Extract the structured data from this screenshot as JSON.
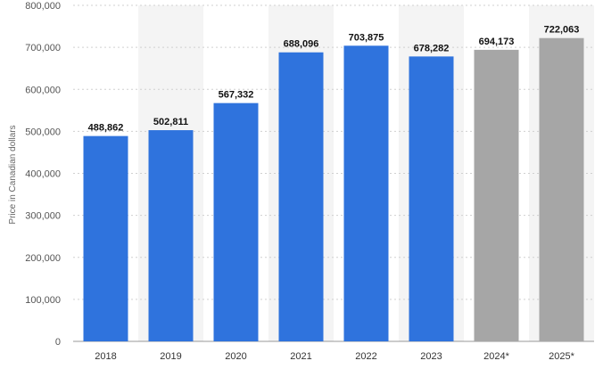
{
  "chart_data": {
    "type": "bar",
    "title": "",
    "xlabel": "",
    "ylabel": "Price in Canadian dollars",
    "ylim": [
      0,
      800000
    ],
    "yticks": [
      0,
      100000,
      200000,
      300000,
      400000,
      500000,
      600000,
      700000,
      800000
    ],
    "ytick_labels": [
      "0",
      "100,000",
      "200,000",
      "300,000",
      "400,000",
      "500,000",
      "600,000",
      "700,000",
      "800,000"
    ],
    "categories": [
      "2018",
      "2019",
      "2020",
      "2021",
      "2022",
      "2023",
      "2024*",
      "2025*"
    ],
    "values": [
      488862,
      502811,
      567332,
      688096,
      703875,
      678282,
      694173,
      722063
    ],
    "value_labels": [
      "488,862",
      "502,811",
      "567,332",
      "688,096",
      "703,875",
      "678,282",
      "694,173",
      "722,063"
    ],
    "colors": {
      "actual": "#2f73dd",
      "forecast": "#a6a6a6",
      "band": "#f4f4f4",
      "grid": "#d0d0d0"
    },
    "forecast_categories": [
      "2024*",
      "2025*"
    ],
    "grid": true
  }
}
